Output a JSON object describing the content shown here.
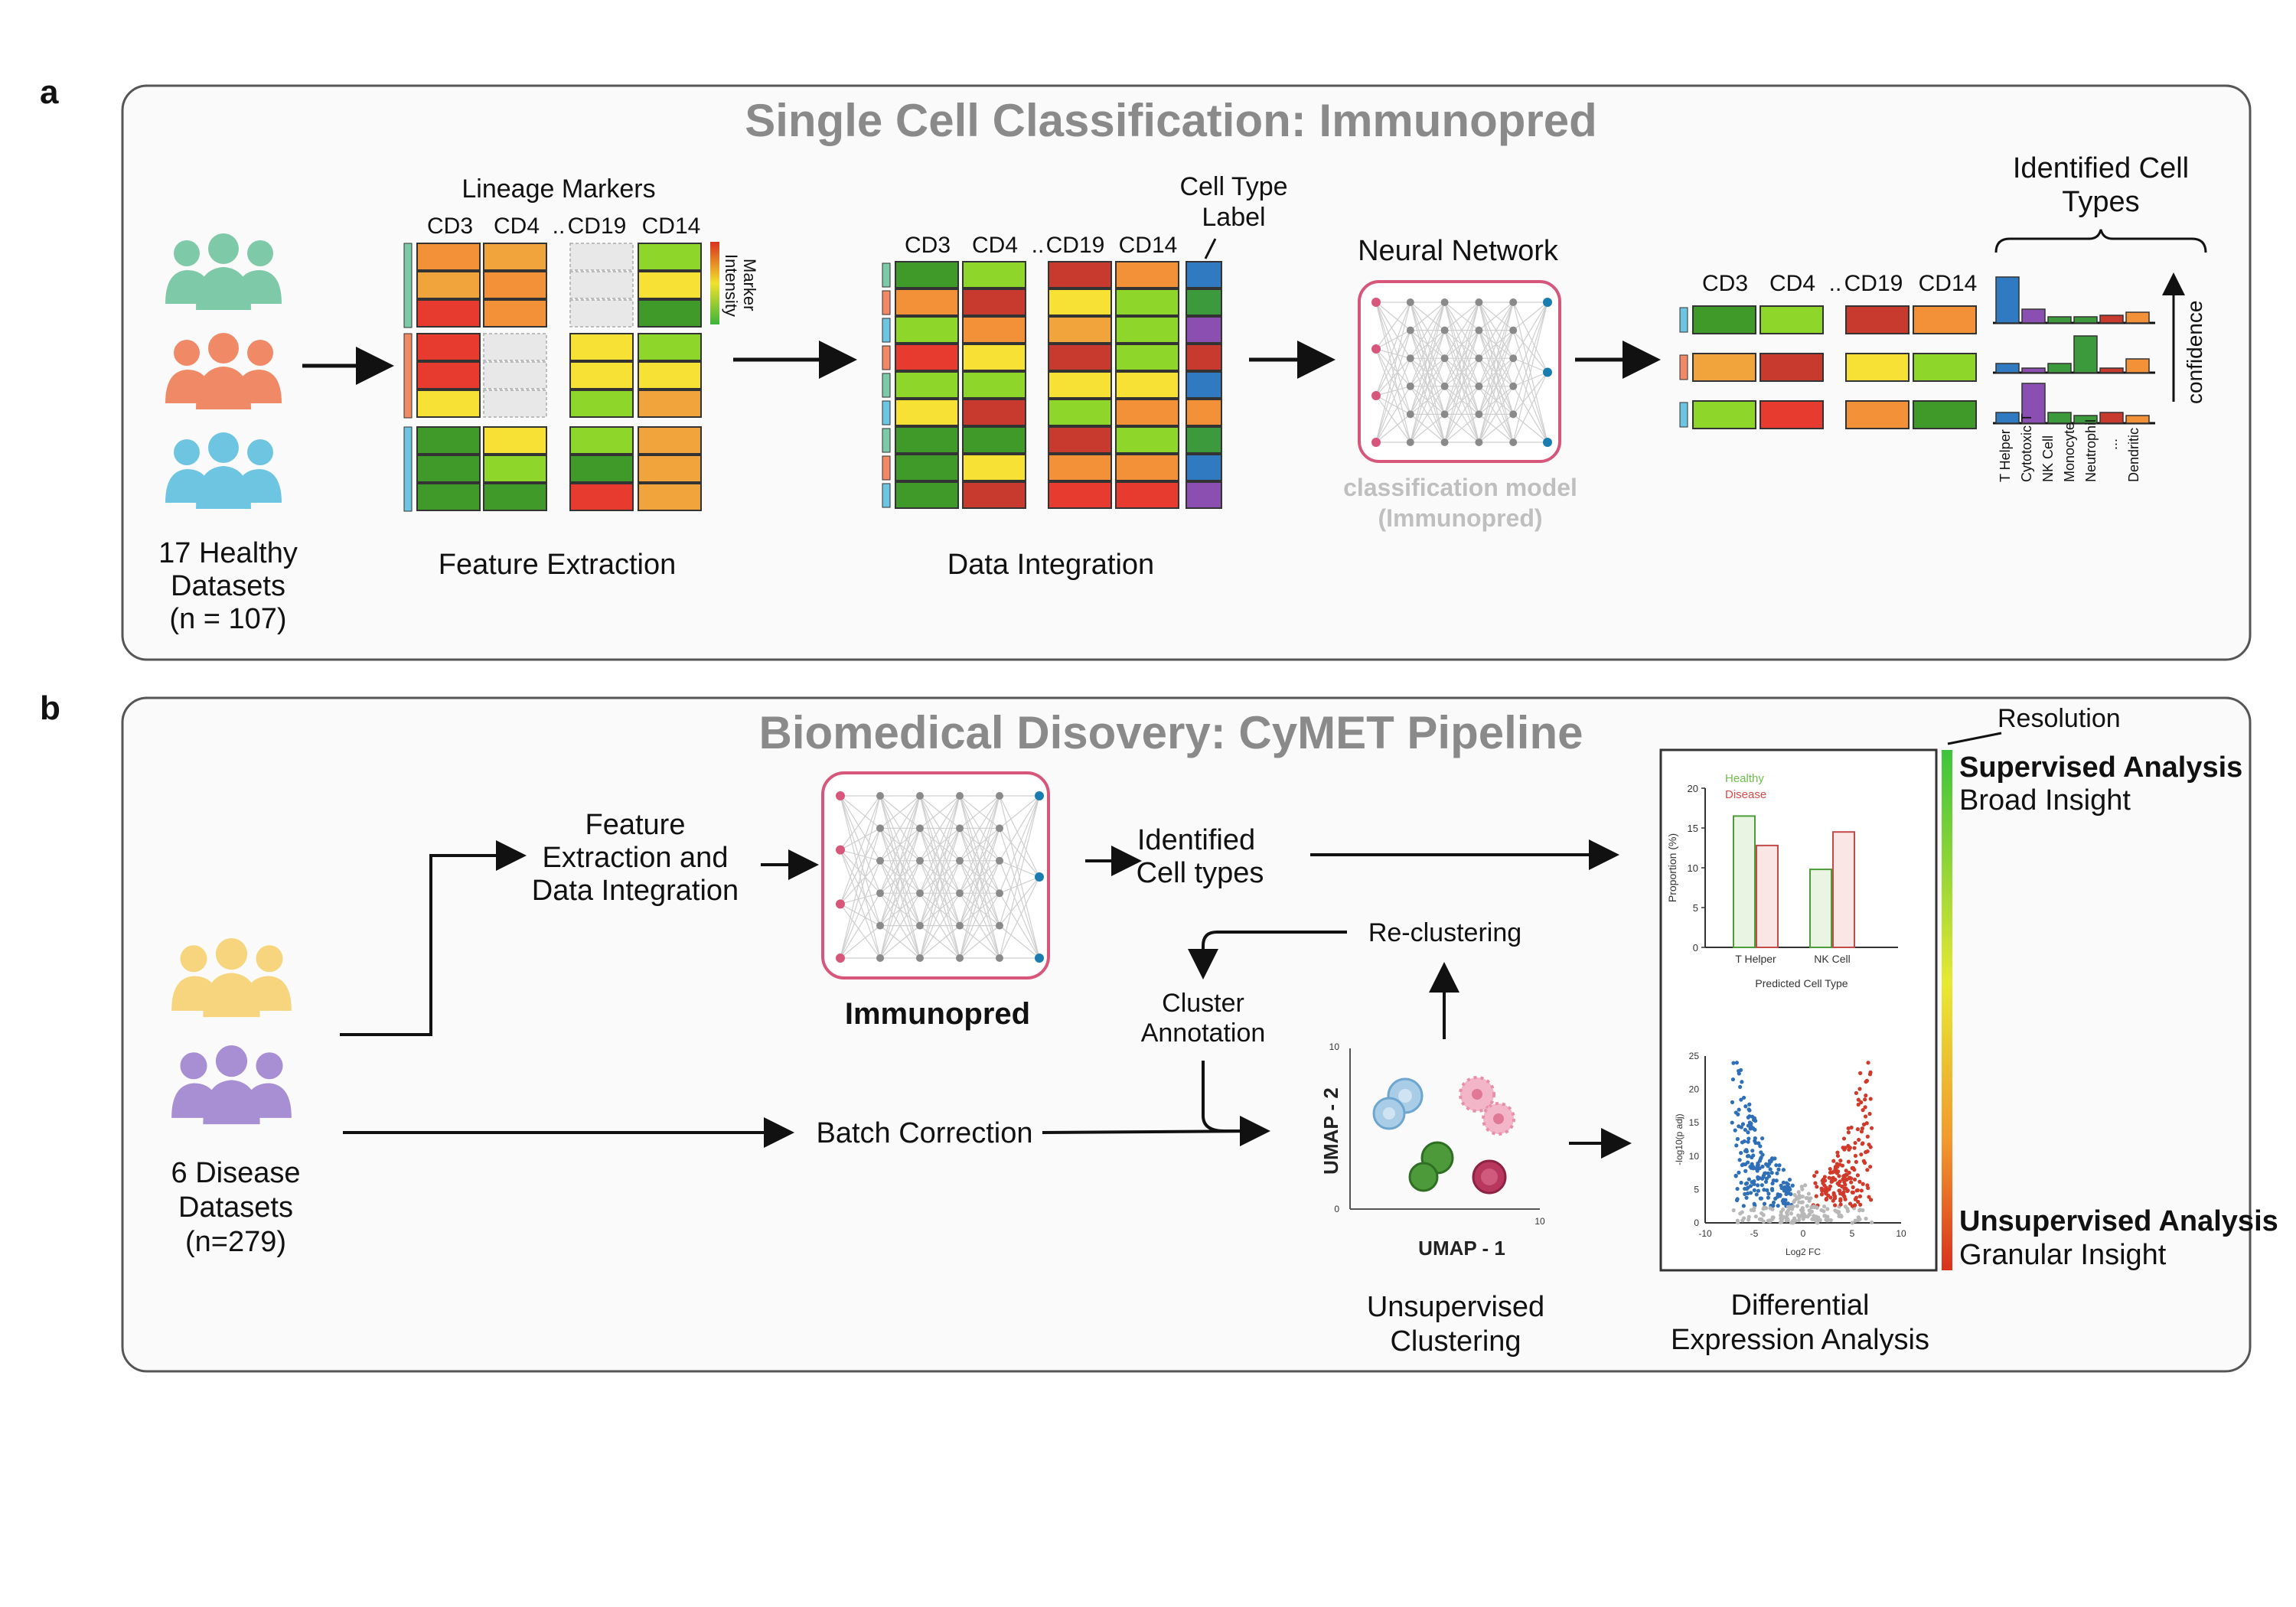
{
  "panel_a": {
    "letter": "a",
    "title": "Single Cell Classification: Immunopred",
    "healthy_label_1": "17 Healthy",
    "healthy_label_2": "Datasets",
    "healthy_label_3": "(n = 107)",
    "lineage_markers": "Lineage Markers",
    "markers": [
      "CD3",
      "CD4",
      "..",
      "CD19",
      "CD14"
    ],
    "marker_intensity_1": "Marker",
    "marker_intensity_2": "Intensity",
    "feature_extraction": "Feature Extraction",
    "cell_type_label_1": "Cell Type",
    "cell_type_label_2": "Label",
    "data_integration": "Data Integration",
    "neural_network": "Neural Network",
    "classification_model_1": "classification model",
    "classification_model_2": "(Immunopred)",
    "identified_cell_types_1": "Identified Cell",
    "identified_cell_types_2": "Types",
    "confidence": "confidence",
    "cell_type_names": [
      "T Helper",
      "Cytotoxic T",
      "NK Cell",
      "Monocyte",
      "Neutrophil",
      "...",
      "Dendritic"
    ]
  },
  "panel_b": {
    "letter": "b",
    "title": "Biomedical Disovery: CyMET Pipeline",
    "disease_label_1": "6 Disease",
    "disease_label_2": "Datasets",
    "disease_label_3": "(n=279)",
    "feature_extraction_1": "Feature",
    "feature_extraction_2": "Extraction and",
    "feature_extraction_3": "Data Integration",
    "immunopred": "Immunopred",
    "identified_1": "Identified",
    "identified_2": "Cell types",
    "reclustering": "Re-clustering",
    "cluster_annotation_1": "Cluster",
    "cluster_annotation_2": "Annotation",
    "batch_correction": "Batch Correction",
    "umap_x": "UMAP - 1",
    "umap_y": "UMAP - 2",
    "umap_tick_0": "0",
    "umap_tick_10": "10",
    "unsupervised_1": "Unsupervised",
    "unsupervised_2": "Clustering",
    "differential_1": "Differential",
    "differential_2": "Expression Analysis",
    "resolution": "Resolution",
    "supervised_analysis": "Supervised Analysis",
    "broad_insight": "Broad Insight",
    "unsupervised_analysis": "Unsupervised Analysis",
    "granular_insight": "Granular Insight"
  },
  "chart_data": [
    {
      "type": "bar",
      "xlabel": "Predicted Cell Type",
      "ylabel": "Proportion (%)",
      "categories": [
        "T Helper",
        "NK Cell"
      ],
      "series": [
        {
          "name": "Healthy",
          "values": [
            16.5,
            9.8
          ],
          "color": "#6dbf4b"
        },
        {
          "name": "Disease",
          "values": [
            12.8,
            14.5
          ],
          "color": "#d64a4a"
        }
      ],
      "ylim": [
        0,
        20
      ],
      "yticks": [
        0,
        5,
        10,
        15,
        20
      ]
    },
    {
      "type": "scatter",
      "xlabel": "Log2 FC",
      "ylabel": "-log10(p adj)",
      "xlim": [
        -10,
        10
      ],
      "ylim": [
        0,
        25
      ],
      "xticks": [
        -10,
        -5,
        0,
        5,
        10
      ],
      "yticks": [
        0,
        5,
        10,
        15,
        20,
        25
      ]
    }
  ],
  "colors": {
    "green": "#7dc9a8",
    "orange": "#f08a66",
    "blue": "#6ec5e2",
    "yellow": "#f6d57e",
    "purple": "#a88fd4",
    "nn_border": "#d6577a",
    "title_gray": "#8a8a8a"
  }
}
